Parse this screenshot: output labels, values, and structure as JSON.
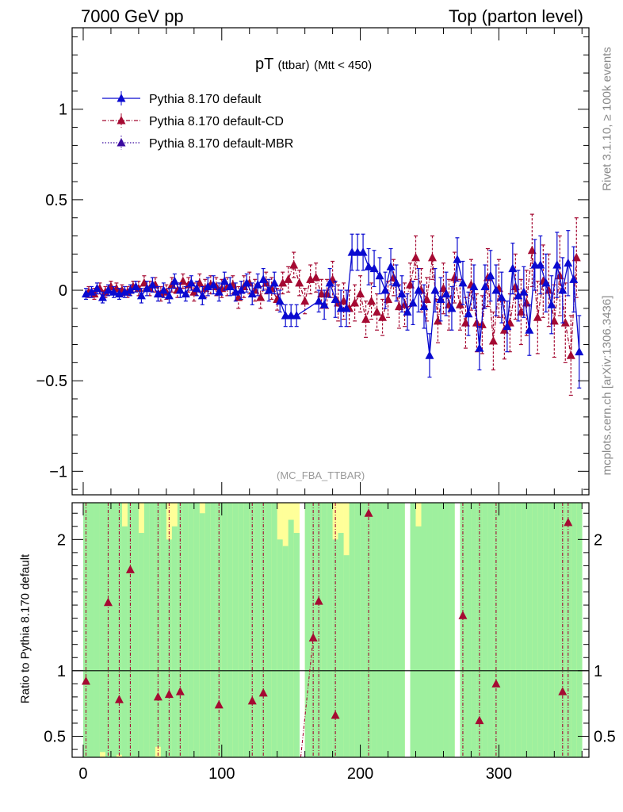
{
  "header": {
    "left": "7000 GeV pp",
    "right": "Top (parton level)"
  },
  "side": {
    "rivet": "Rivet 3.1.10, ≥ 100k events",
    "site": "mcplots.cern.ch [arXiv:1306.3436]"
  },
  "plot_title": {
    "main": "pT",
    "sub1": "(ttbar)",
    "sub2": "(Mtt < 450)"
  },
  "analysis_tag": "(MC_FBA_TTBAR)",
  "ratio_ylabel": "Ratio to Pythia 8.170 default",
  "colors": {
    "default": "#0a0ad0",
    "cd": "#a50a32",
    "mbr": "#3a0aa0",
    "band_green": "#9ef09e",
    "band_yellow": "#ffff99"
  },
  "chart_data": [
    {
      "type": "line",
      "panel": "main",
      "xlim": [
        -8,
        365
      ],
      "ylim": [
        -1.13,
        1.45
      ],
      "yticks": [
        -1,
        -0.5,
        0,
        0.5,
        1
      ],
      "yticklabels": [
        "−1",
        "−0.5",
        "0",
        "0.5",
        "1"
      ],
      "legend": [
        "Pythia 8.170 default",
        "Pythia 8.170 default-CD",
        "Pythia 8.170 default-MBR"
      ],
      "legend_position": "top-left",
      "series": [
        {
          "name": "Pythia 8.170 default",
          "style": "solid",
          "x": [
            2,
            6,
            10,
            14,
            18,
            22,
            26,
            30,
            34,
            38,
            42,
            46,
            50,
            54,
            58,
            62,
            66,
            70,
            74,
            78,
            82,
            86,
            90,
            94,
            98,
            102,
            106,
            110,
            114,
            118,
            122,
            126,
            130,
            134,
            138,
            142,
            146,
            150,
            154,
            170,
            174,
            178,
            182,
            186,
            190,
            194,
            198,
            202,
            206,
            210,
            214,
            218,
            222,
            226,
            230,
            234,
            238,
            242,
            246,
            250,
            254,
            258,
            262,
            266,
            270,
            274,
            278,
            282,
            286,
            290,
            294,
            298,
            302,
            306,
            310,
            314,
            318,
            322,
            326,
            330,
            334,
            338,
            342,
            346,
            350,
            354,
            358
          ],
          "y": [
            -0.02,
            -0.01,
            0.01,
            -0.04,
            0.0,
            -0.01,
            -0.02,
            -0.01,
            0.0,
            0.02,
            -0.03,
            0.01,
            0.03,
            -0.02,
            0.0,
            -0.03,
            0.05,
            0.0,
            -0.02,
            0.04,
            0.01,
            -0.03,
            0.02,
            0.03,
            -0.01,
            0.05,
            0.02,
            -0.01,
            0.0,
            0.04,
            -0.02,
            0.03,
            0.06,
            0.0,
            0.04,
            -0.06,
            -0.14,
            -0.14,
            -0.14,
            -0.06,
            -0.08,
            0.04,
            -0.05,
            -0.1,
            -0.1,
            0.21,
            0.21,
            0.21,
            0.13,
            0.12,
            0.08,
            0.0,
            0.13,
            0.04,
            -0.02,
            -0.12,
            -0.07,
            0.0,
            -0.09,
            -0.36,
            0.0,
            -0.05,
            -0.02,
            -0.1,
            0.17,
            0.04,
            -0.13,
            0.02,
            -0.32,
            0.02,
            0.08,
            0.0,
            -0.04,
            -0.2,
            0.12,
            -0.03,
            -0.01,
            -0.22,
            0.14,
            0.14,
            0.04,
            -0.08,
            0.14,
            0.0,
            0.15,
            0.06,
            -0.34
          ],
          "yerr": [
            0.03,
            0.03,
            0.03,
            0.03,
            0.03,
            0.03,
            0.03,
            0.03,
            0.03,
            0.03,
            0.04,
            0.04,
            0.04,
            0.04,
            0.04,
            0.04,
            0.04,
            0.04,
            0.04,
            0.04,
            0.04,
            0.05,
            0.05,
            0.05,
            0.05,
            0.05,
            0.05,
            0.05,
            0.05,
            0.05,
            0.06,
            0.06,
            0.06,
            0.06,
            0.06,
            0.06,
            0.06,
            0.06,
            0.06,
            0.06,
            0.08,
            0.08,
            0.1,
            0.1,
            0.1,
            0.1,
            0.1,
            0.1,
            0.1,
            0.1,
            0.1,
            0.1,
            0.1,
            0.1,
            0.1,
            0.1,
            0.12,
            0.12,
            0.12,
            0.12,
            0.12,
            0.12,
            0.12,
            0.12,
            0.12,
            0.12,
            0.12,
            0.12,
            0.12,
            0.12,
            0.14,
            0.14,
            0.14,
            0.14,
            0.14,
            0.14,
            0.14,
            0.14,
            0.14,
            0.16,
            0.16,
            0.16,
            0.18,
            0.18,
            0.18,
            0.18,
            0.2
          ]
        },
        {
          "name": "Pythia 8.170 default-CD",
          "style": "dashdot",
          "x": [
            4,
            8,
            12,
            16,
            20,
            24,
            28,
            32,
            36,
            40,
            44,
            48,
            52,
            56,
            60,
            64,
            68,
            72,
            76,
            80,
            84,
            88,
            92,
            96,
            100,
            104,
            108,
            112,
            116,
            120,
            124,
            128,
            132,
            136,
            140,
            144,
            148,
            152,
            156,
            160,
            164,
            168,
            172,
            176,
            180,
            184,
            188,
            192,
            196,
            200,
            204,
            208,
            212,
            216,
            220,
            224,
            228,
            232,
            236,
            240,
            244,
            248,
            252,
            256,
            260,
            264,
            268,
            272,
            276,
            280,
            284,
            288,
            292,
            296,
            300,
            304,
            308,
            312,
            316,
            320,
            324,
            328,
            332,
            336,
            340,
            344,
            348,
            352,
            356
          ],
          "y": [
            -0.01,
            -0.02,
            0.01,
            -0.01,
            0.02,
            0.01,
            0.0,
            -0.01,
            0.02,
            0.01,
            0.04,
            0.01,
            0.03,
            -0.02,
            -0.01,
            0.03,
            0.0,
            0.05,
            0.03,
            -0.01,
            0.04,
            0.01,
            0.03,
            0.02,
            0.01,
            0.02,
            0.03,
            -0.04,
            0.02,
            0.04,
            0.0,
            -0.04,
            0.04,
            0.01,
            -0.05,
            0.04,
            0.06,
            0.14,
            0.04,
            -0.06,
            0.06,
            0.07,
            -0.02,
            -0.02,
            0.06,
            -0.07,
            -0.06,
            -0.1,
            -0.07,
            -0.02,
            -0.16,
            -0.06,
            -0.12,
            -0.15,
            -0.05,
            0.07,
            -0.09,
            -0.08,
            0.03,
            0.18,
            0.0,
            -0.05,
            0.18,
            -0.17,
            0.01,
            -0.08,
            0.07,
            -0.08,
            -0.18,
            0.03,
            -0.18,
            -0.19,
            0.07,
            -0.28,
            0.01,
            -0.22,
            -0.18,
            0.02,
            -0.12,
            -0.07,
            0.22,
            -0.15,
            0.05,
            0.0,
            -0.17,
            0.08,
            -0.18,
            -0.36,
            0.18
          ],
          "yerr": [
            0.03,
            0.03,
            0.03,
            0.03,
            0.03,
            0.03,
            0.03,
            0.03,
            0.03,
            0.04,
            0.04,
            0.04,
            0.04,
            0.04,
            0.04,
            0.04,
            0.04,
            0.04,
            0.04,
            0.05,
            0.05,
            0.05,
            0.05,
            0.05,
            0.05,
            0.05,
            0.05,
            0.06,
            0.06,
            0.06,
            0.06,
            0.06,
            0.06,
            0.06,
            0.06,
            0.06,
            0.07,
            0.07,
            0.07,
            0.07,
            0.08,
            0.08,
            0.08,
            0.08,
            0.1,
            0.1,
            0.1,
            0.1,
            0.1,
            0.1,
            0.1,
            0.1,
            0.1,
            0.1,
            0.1,
            0.1,
            0.12,
            0.12,
            0.12,
            0.12,
            0.12,
            0.12,
            0.12,
            0.12,
            0.14,
            0.14,
            0.14,
            0.14,
            0.14,
            0.14,
            0.16,
            0.16,
            0.16,
            0.16,
            0.16,
            0.16,
            0.16,
            0.18,
            0.18,
            0.18,
            0.2,
            0.2,
            0.2,
            0.2,
            0.2,
            0.22,
            0.22,
            0.22,
            0.22
          ]
        },
        {
          "name": "Pythia 8.170 default-MBR",
          "style": "dotted",
          "x": [],
          "y": []
        }
      ]
    },
    {
      "type": "line",
      "panel": "ratio",
      "xlim": [
        -8,
        365
      ],
      "ylim": [
        0.34,
        2.28
      ],
      "yticks": [
        0.5,
        1,
        2
      ],
      "yticklabels": [
        "0.5",
        "1",
        "2"
      ],
      "xticks": [
        0,
        100,
        200,
        300
      ],
      "xticklabels": [
        "0",
        "100",
        "200",
        "300"
      ],
      "reference_line": 1,
      "band_edges": [
        0,
        4,
        8,
        12,
        16,
        20,
        24,
        28,
        32,
        36,
        40,
        44,
        48,
        52,
        56,
        60,
        64,
        68,
        72,
        76,
        80,
        84,
        88,
        92,
        96,
        100,
        104,
        108,
        112,
        116,
        120,
        124,
        128,
        132,
        136,
        140,
        144,
        148,
        152,
        156,
        160,
        164,
        168,
        172,
        176,
        180,
        184,
        188,
        192,
        196,
        200,
        204,
        208,
        212,
        216,
        220,
        224,
        228,
        232,
        236,
        240,
        244,
        248,
        252,
        256,
        260,
        264,
        268,
        272,
        276,
        280,
        284,
        288,
        292,
        296,
        300,
        304,
        308,
        312,
        316,
        320,
        324,
        328,
        332,
        336,
        340,
        344,
        348,
        352,
        356,
        360
      ],
      "bands": {
        "green_lo": [
          0.34,
          0.34,
          0.34,
          0.38,
          0.34,
          0.34,
          0.36,
          0.34,
          0.34,
          0.34,
          0.34,
          0.34,
          0.34,
          0.42,
          0.34,
          0.34,
          0.34,
          0.34,
          0.34,
          0.34,
          0.34,
          0.34,
          0.34,
          0.34,
          0.34,
          0.34,
          0.34,
          0.34,
          0.34,
          0.34,
          0.34,
          0.34,
          0.34,
          0.34,
          0.34,
          0.34,
          0.34,
          0.34,
          0.34,
          null,
          0.34,
          0.34,
          0.34,
          0.34,
          0.34,
          0.34,
          0.34,
          0.34,
          0.34,
          0.34,
          0.34,
          0.34,
          0.34,
          0.34,
          0.34,
          0.34,
          0.34,
          0.34,
          null,
          0.34,
          0.34,
          0.34,
          0.34,
          0.34,
          0.34,
          0.34,
          0.34,
          null,
          0.34,
          0.34,
          0.34,
          0.34,
          0.34,
          0.34,
          0.34,
          0.34,
          0.34,
          0.34,
          0.34,
          0.34,
          0.34,
          0.34,
          0.34,
          0.34,
          0.34,
          0.34,
          0.34,
          0.34,
          0.34,
          0.34
        ],
        "green_hi": [
          2.28,
          2.28,
          2.28,
          2.28,
          2.28,
          2.28,
          2.28,
          2.1,
          2.28,
          2.28,
          2.05,
          2.28,
          2.28,
          2.28,
          2.28,
          2.0,
          2.1,
          2.28,
          2.28,
          2.28,
          2.28,
          2.2,
          2.28,
          2.28,
          2.28,
          2.28,
          2.28,
          2.28,
          2.28,
          2.28,
          2.28,
          2.28,
          2.28,
          2.28,
          2.28,
          2.0,
          1.95,
          2.15,
          2.05,
          null,
          2.28,
          2.28,
          2.28,
          2.28,
          2.28,
          2.0,
          2.05,
          1.88,
          2.28,
          2.28,
          2.28,
          2.28,
          2.28,
          2.28,
          2.28,
          2.28,
          2.28,
          2.28,
          null,
          2.28,
          2.1,
          2.28,
          2.28,
          2.28,
          2.28,
          2.28,
          2.28,
          null,
          2.28,
          2.28,
          2.28,
          2.28,
          2.28,
          2.28,
          2.28,
          2.28,
          2.28,
          2.28,
          2.28,
          2.28,
          2.28,
          2.28,
          2.28,
          2.28,
          2.28,
          2.28,
          2.28,
          2.28,
          2.28,
          2.28
        ],
        "yellow_lo": [
          0.34,
          0.34,
          0.34,
          0.34,
          0.34,
          0.34,
          0.34,
          0.34,
          0.34,
          0.34,
          0.34,
          0.34,
          0.34,
          0.34,
          0.34,
          0.34,
          0.34,
          0.34,
          0.34,
          0.34,
          0.34,
          0.34,
          0.34,
          0.34,
          0.34,
          0.34,
          0.34,
          0.34,
          0.34,
          0.34,
          0.34,
          0.34,
          0.34,
          0.34,
          0.34,
          0.34,
          0.34,
          0.34,
          0.34,
          null,
          0.34,
          0.34,
          0.34,
          0.34,
          0.34,
          0.34,
          0.34,
          0.34,
          0.34,
          0.34,
          0.34,
          0.34,
          0.34,
          0.34,
          0.34,
          0.34,
          0.34,
          0.34,
          null,
          0.34,
          0.34,
          0.34,
          0.34,
          0.34,
          0.34,
          0.34,
          0.34,
          null,
          0.34,
          0.34,
          0.34,
          0.34,
          0.34,
          0.34,
          0.34,
          0.34,
          0.34,
          0.34,
          0.34,
          0.34,
          0.34,
          0.34,
          0.34,
          0.34,
          0.34,
          0.34,
          0.34,
          0.34,
          0.34,
          0.34
        ],
        "yellow_hi": [
          2.28,
          2.28,
          2.28,
          2.28,
          2.28,
          2.28,
          2.28,
          2.28,
          2.28,
          2.28,
          2.28,
          2.28,
          2.28,
          2.28,
          2.28,
          2.28,
          2.28,
          2.28,
          2.28,
          2.28,
          2.28,
          2.28,
          2.28,
          2.28,
          2.28,
          2.28,
          2.28,
          2.28,
          2.28,
          2.28,
          2.28,
          2.28,
          2.28,
          2.28,
          2.28,
          2.28,
          2.28,
          2.28,
          2.28,
          null,
          2.28,
          2.28,
          2.28,
          2.28,
          2.28,
          2.28,
          2.28,
          2.28,
          2.28,
          2.28,
          2.28,
          2.28,
          2.28,
          2.28,
          2.28,
          2.28,
          2.28,
          2.28,
          null,
          2.28,
          2.28,
          2.28,
          2.28,
          2.28,
          2.28,
          2.28,
          2.28,
          null,
          2.28,
          2.28,
          2.28,
          2.28,
          2.28,
          2.28,
          2.28,
          2.28,
          2.28,
          2.28,
          2.28,
          2.28,
          2.28,
          2.28,
          2.28,
          2.28,
          2.28,
          2.28,
          2.28,
          2.28,
          2.28,
          2.28
        ]
      },
      "series": [
        {
          "name": "Pythia 8.170 default-CD",
          "style": "dashdot",
          "x": [
            2,
            18,
            26,
            34,
            54,
            62,
            70,
            98,
            122,
            130,
            166,
            170,
            182,
            206,
            274,
            286,
            298,
            346,
            350
          ],
          "y": [
            0.92,
            1.52,
            0.78,
            1.77,
            0.8,
            0.82,
            0.84,
            0.74,
            0.77,
            0.83,
            1.25,
            1.53,
            0.66,
            2.2,
            1.42,
            0.62,
            0.9,
            0.84,
            2.13
          ]
        }
      ]
    }
  ]
}
